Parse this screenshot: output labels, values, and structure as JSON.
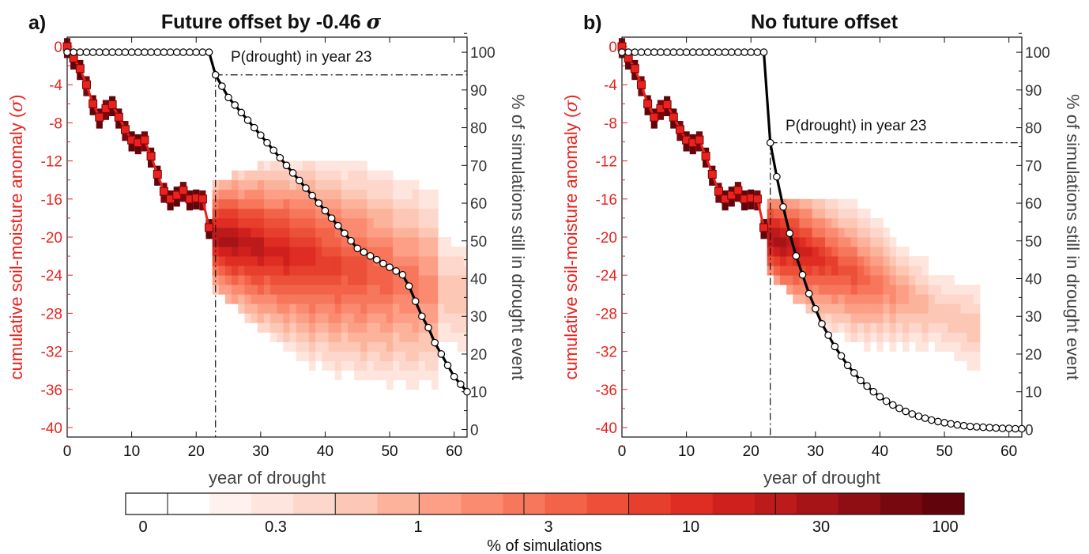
{
  "colors": {
    "observed_red": "#e8231f",
    "marker_edge": "#7a0000",
    "colorbar": [
      "#ffffff",
      "#ffffff",
      "#fff2ee",
      "#fee5dd",
      "#fdd7cb",
      "#fcc7b4",
      "#fcb39c",
      "#fc9f86",
      "#fb8b70",
      "#f7775c",
      "#f2634a",
      "#ec5038",
      "#e63f2e",
      "#df2d24",
      "#d0201e",
      "#bc1a1b",
      "#a61418",
      "#8f0e14",
      "#780810",
      "#61040b"
    ]
  },
  "panels": [
    {
      "label": "a)",
      "title_text": "Future offset by -0.46 ",
      "title_sigma": "σ",
      "annotation": "P(drought) in year 23",
      "xlabel": "year of drought",
      "ylabel_left_text": "cumulative soil-moisture anomaly (",
      "ylabel_left_sigma": "σ",
      "ylabel_left_close": ")",
      "ylabel_right": "% of simulations still in drought event"
    },
    {
      "label": "b)",
      "title_text": "No future offset",
      "annotation": "P(drought) in year 23",
      "xlabel": "year of drought",
      "ylabel_left_text": "cumulative soil-moisture anomaly (",
      "ylabel_left_sigma": "σ",
      "ylabel_left_close": ")",
      "ylabel_right": "% of simulations still in drought event"
    }
  ],
  "colorbar_labels": [
    "0",
    "0.3",
    "1",
    "3",
    "10",
    "30",
    "100"
  ],
  "colorbar_title": "% of simulations",
  "chart_data": [
    {
      "type": "heatmap",
      "title": "Future offset by -0.46 σ",
      "xlabel": "year of drought",
      "ylabel": "cumulative soil-moisture anomaly (σ)",
      "ylabel_right": "% of simulations still in drought event",
      "xlim": [
        0,
        62
      ],
      "ylim": [
        -41,
        1
      ],
      "ylim_right": [
        -2,
        104
      ],
      "xticks": [
        0,
        10,
        20,
        30,
        40,
        50,
        60
      ],
      "yticks": [
        0,
        -4,
        -8,
        -12,
        -16,
        -20,
        -24,
        -28,
        -32,
        -36,
        -40
      ],
      "yticks_right": [
        0,
        10,
        20,
        30,
        40,
        50,
        60,
        70,
        80,
        90,
        100
      ],
      "observed": {
        "x": [
          0,
          1,
          2,
          3,
          4,
          5,
          6,
          7,
          8,
          9,
          10,
          11,
          12,
          13,
          14,
          15,
          16,
          17,
          18,
          19,
          20,
          21,
          22
        ],
        "y": [
          0,
          -1.2,
          -2.3,
          -4.0,
          -6.0,
          -7.4,
          -6.5,
          -6.1,
          -7.4,
          -8.7,
          -9.8,
          -10.1,
          -9.8,
          -11.5,
          -13.4,
          -15.2,
          -16.0,
          -15.6,
          -15.1,
          -16.0,
          -15.9,
          -16.0,
          -19.0
        ]
      },
      "survival": {
        "x": [
          0,
          1,
          2,
          3,
          4,
          5,
          6,
          7,
          8,
          9,
          10,
          11,
          12,
          13,
          14,
          15,
          16,
          17,
          18,
          19,
          20,
          21,
          22,
          23,
          24,
          25,
          26,
          27,
          28,
          29,
          30,
          31,
          32,
          33,
          34,
          35,
          36,
          37,
          38,
          39,
          40,
          41,
          42,
          43,
          44,
          45,
          46,
          47,
          48,
          49,
          50,
          51,
          52,
          53,
          54,
          55,
          56,
          57,
          58,
          59,
          60,
          61,
          62
        ],
        "y": [
          100,
          100,
          100,
          100,
          100,
          100,
          100,
          100,
          100,
          100,
          100,
          100,
          100,
          100,
          100,
          100,
          100,
          100,
          100,
          100,
          100,
          100,
          100,
          94,
          91,
          88,
          86,
          84,
          82,
          80,
          78,
          76,
          74,
          72,
          70,
          68,
          66,
          64,
          62,
          60,
          58,
          56,
          54,
          52,
          50,
          48,
          47,
          46,
          45,
          44,
          43,
          42,
          41,
          38,
          34,
          30,
          27,
          23,
          20,
          17,
          14,
          12,
          10
        ]
      },
      "annotation_year": 23,
      "annotation_prob": 94
    },
    {
      "type": "heatmap",
      "title": "No future offset",
      "xlabel": "year of drought",
      "ylabel": "cumulative soil-moisture anomaly (σ)",
      "ylabel_right": "% of simulations still in drought event",
      "xlim": [
        0,
        62
      ],
      "ylim": [
        -41,
        1
      ],
      "ylim_right": [
        -2,
        104
      ],
      "xticks": [
        0,
        10,
        20,
        30,
        40,
        50,
        60
      ],
      "yticks": [
        0,
        -4,
        -8,
        -12,
        -16,
        -20,
        -24,
        -28,
        -32,
        -36,
        -40
      ],
      "yticks_right": [
        0,
        10,
        20,
        30,
        40,
        50,
        60,
        70,
        80,
        90,
        100
      ],
      "observed": {
        "x": [
          0,
          1,
          2,
          3,
          4,
          5,
          6,
          7,
          8,
          9,
          10,
          11,
          12,
          13,
          14,
          15,
          16,
          17,
          18,
          19,
          20,
          21,
          22
        ],
        "y": [
          0,
          -1.2,
          -2.3,
          -4.0,
          -6.0,
          -7.4,
          -6.5,
          -6.1,
          -7.4,
          -8.7,
          -9.8,
          -10.1,
          -9.8,
          -11.5,
          -13.4,
          -15.2,
          -16.0,
          -15.6,
          -15.1,
          -16.0,
          -15.9,
          -16.0,
          -19.0
        ]
      },
      "survival": {
        "x": [
          0,
          1,
          2,
          3,
          4,
          5,
          6,
          7,
          8,
          9,
          10,
          11,
          12,
          13,
          14,
          15,
          16,
          17,
          18,
          19,
          20,
          21,
          22,
          23,
          24,
          25,
          26,
          27,
          28,
          29,
          30,
          31,
          32,
          33,
          34,
          35,
          36,
          37,
          38,
          39,
          40,
          41,
          42,
          43,
          44,
          45,
          46,
          47,
          48,
          49,
          50,
          51,
          52,
          53,
          54,
          55,
          56,
          57,
          58,
          59,
          60,
          61,
          62
        ],
        "y": [
          100,
          100,
          100,
          100,
          100,
          100,
          100,
          100,
          100,
          100,
          100,
          100,
          100,
          100,
          100,
          100,
          100,
          100,
          100,
          100,
          100,
          100,
          100,
          76,
          67,
          59,
          52,
          46,
          41,
          36,
          32,
          28,
          25,
          22,
          19.5,
          17,
          15,
          13,
          11.5,
          10,
          8.7,
          7.5,
          6.5,
          5.6,
          4.8,
          4.1,
          3.5,
          3,
          2.5,
          2.1,
          1.8,
          1.5,
          1.2,
          1,
          0.8,
          0.7,
          0.6,
          0.5,
          0.4,
          0.3,
          0.3,
          0.2,
          0.2
        ]
      },
      "annotation_year": 23,
      "annotation_prob": 76
    }
  ]
}
